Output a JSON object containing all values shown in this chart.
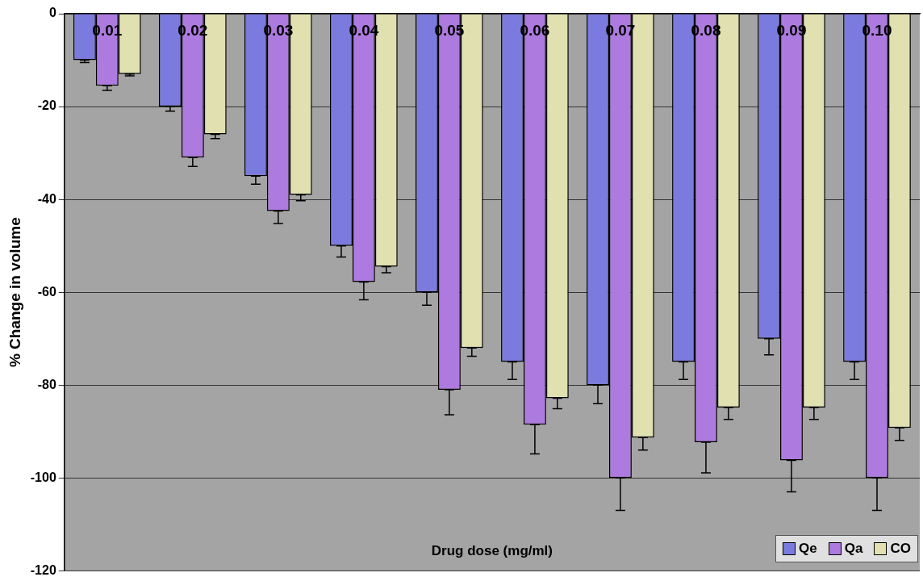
{
  "chart_data": {
    "type": "bar",
    "xlabel": "Drug dose (mg/ml)",
    "ylabel": "% Change in volume",
    "categories": [
      "0.01",
      "0.02",
      "0.03",
      "0.04",
      "0.05",
      "0.06",
      "0.07",
      "0.08",
      "0.09",
      "0.10"
    ],
    "series": [
      {
        "name": "Qe",
        "color": "#7b7bdf",
        "values": [
          -10,
          -20,
          -35,
          -50,
          -60,
          -75,
          -80,
          -75,
          -70,
          -75
        ],
        "errors": [
          [
            -10.5,
            -10
          ],
          [
            -21,
            -20
          ],
          [
            -36.7,
            -35
          ],
          [
            -52.4,
            -50
          ],
          [
            -62.8,
            -60
          ],
          [
            -78.8,
            -75
          ],
          [
            -84,
            -80
          ],
          [
            -78.8,
            -75
          ],
          [
            -73.5,
            -70
          ],
          [
            -78.8,
            -75
          ]
        ]
      },
      {
        "name": "Qa",
        "color": "#ad7adf",
        "values": [
          -15.5,
          -31,
          -42.5,
          -57.8,
          -81,
          -88.5,
          -100,
          -92.3,
          -96.2,
          -100
        ],
        "errors": [
          [
            -16.5,
            -15.5
          ],
          [
            -32.9,
            -31
          ],
          [
            -45.2,
            -42.5
          ],
          [
            -61.6,
            -57.8
          ],
          [
            -86.4,
            -81
          ],
          [
            -94.8,
            -88.5
          ],
          [
            -107,
            -100
          ],
          [
            -98.9,
            -92.3
          ],
          [
            -103,
            -96.2
          ],
          [
            -107,
            -100
          ]
        ]
      },
      {
        "name": "CO",
        "color": "#e0e0b0",
        "values": [
          -13,
          -26,
          -39,
          -54.5,
          -72,
          -82.8,
          -91.3,
          -84.8,
          -84.8,
          -89.2
        ],
        "errors": [
          [
            -13.4,
            -13
          ],
          [
            -26.9,
            -26
          ],
          [
            -40.3,
            -39
          ],
          [
            -55.8,
            -54.5
          ],
          [
            -73.8,
            -72
          ],
          [
            -85.1,
            -82.8
          ],
          [
            -94,
            -91.3
          ],
          [
            -87.4,
            -84.8
          ],
          [
            -87.4,
            -84.8
          ],
          [
            -91.9,
            -89.2
          ]
        ]
      }
    ],
    "ylim": [
      -120,
      0
    ],
    "yticks": [
      -120,
      -100,
      -80,
      -60,
      -40,
      -20,
      0
    ],
    "grid": "y",
    "legend": "bottom right"
  }
}
